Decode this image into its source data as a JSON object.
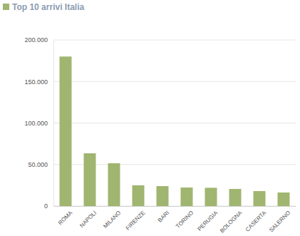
{
  "chart_data": {
    "type": "bar",
    "title": "Top 10 arrivi Italia",
    "categories": [
      "ROMA",
      "NAPOLI",
      "MILANO",
      "FIRENZE",
      "BARI",
      "TORINO",
      "PERUGIA",
      "BOLOGNA",
      "CASERTA",
      "SALERNO"
    ],
    "values": [
      180000,
      63500,
      51500,
      25000,
      24000,
      22300,
      22000,
      20600,
      18000,
      16300
    ],
    "color": "#a0b56f",
    "ylim": [
      0,
      200000
    ],
    "yticks": [
      0,
      {
        "value": 50000,
        "label": "50.000"
      },
      {
        "value": 100000,
        "label": "100.000"
      },
      {
        "value": 150000,
        "label": "150.000"
      },
      {
        "value": 200000,
        "label": "200.000"
      }
    ],
    "grid": true
  }
}
